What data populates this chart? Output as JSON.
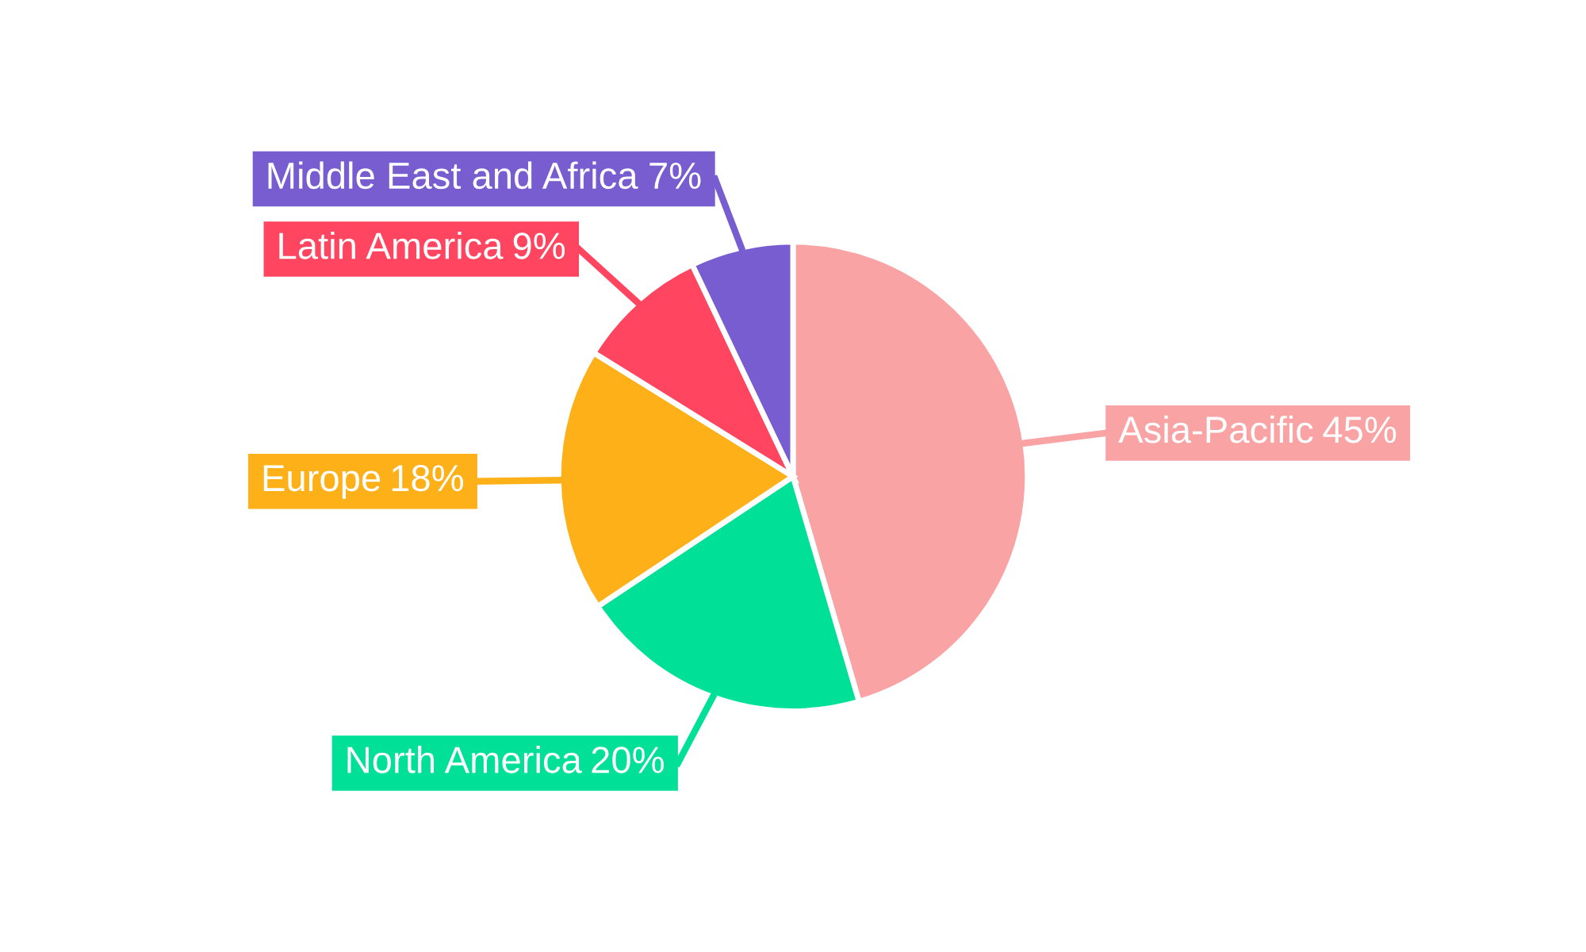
{
  "chart_data": {
    "type": "pie",
    "categories": [
      "Asia-Pacific",
      "North America",
      "Europe",
      "Latin America",
      "Middle East and Africa"
    ],
    "values": [
      45,
      20,
      18,
      9,
      7
    ],
    "value_labels": [
      "45%",
      "20%",
      "18%",
      "9%",
      "7%"
    ],
    "colors": [
      "#f9a3a4",
      "#00e096",
      "#feb019",
      "#ff4560",
      "#775dd0"
    ]
  }
}
